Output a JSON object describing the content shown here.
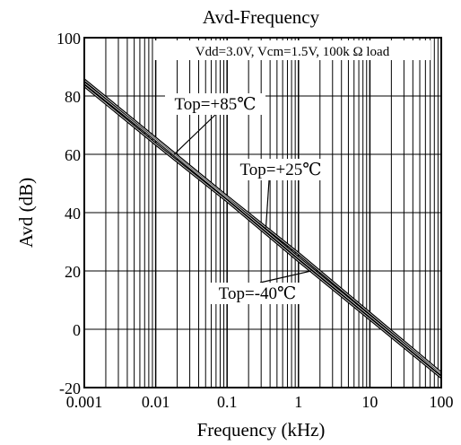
{
  "chart_data": {
    "type": "line",
    "title": "Avd-Frequency",
    "subtitle": "Vdd=3.0V, Vcm=1.5V, 100k Ω  load",
    "xlabel": "Frequency (kHz)",
    "ylabel": "Avd (dB)",
    "x_scale": "log",
    "xlim": [
      0.001,
      100
    ],
    "ylim": [
      -20,
      100
    ],
    "x_ticks": [
      0.001,
      0.01,
      0.1,
      1,
      10,
      100
    ],
    "x_tick_labels": [
      "0.001",
      "0.01",
      "0.1",
      "1",
      "10",
      "100"
    ],
    "y_ticks": [
      -20,
      0,
      20,
      40,
      60,
      80,
      100
    ],
    "y_tick_labels": [
      "-20",
      "0",
      "20",
      "40",
      "60",
      "80",
      "100"
    ],
    "grid": true,
    "series": [
      {
        "name": "Top=+85℃",
        "x": [
          0.001,
          0.01,
          0.1,
          1,
          10,
          100
        ],
        "y": [
          84.5,
          65,
          45,
          24.5,
          4.5,
          -15.5
        ]
      },
      {
        "name": "Top=+25℃",
        "x": [
          0.001,
          0.01,
          0.1,
          1,
          10,
          100
        ],
        "y": [
          85.5,
          65.5,
          45.5,
          26,
          5.5,
          -15
        ]
      },
      {
        "name": "Top=-40℃",
        "x": [
          0.001,
          0.01,
          0.1,
          1,
          10,
          100
        ],
        "y": [
          83.5,
          63.5,
          44,
          23.5,
          3.5,
          -16.5
        ]
      }
    ],
    "annotations": [
      {
        "text": "Top=+85℃",
        "series": 0,
        "at_x": 0.018
      },
      {
        "text": "Top=+25℃",
        "series": 1,
        "at_x": 0.35
      },
      {
        "text": "Top=-40℃",
        "series": 2,
        "at_x": 1.5
      }
    ]
  }
}
